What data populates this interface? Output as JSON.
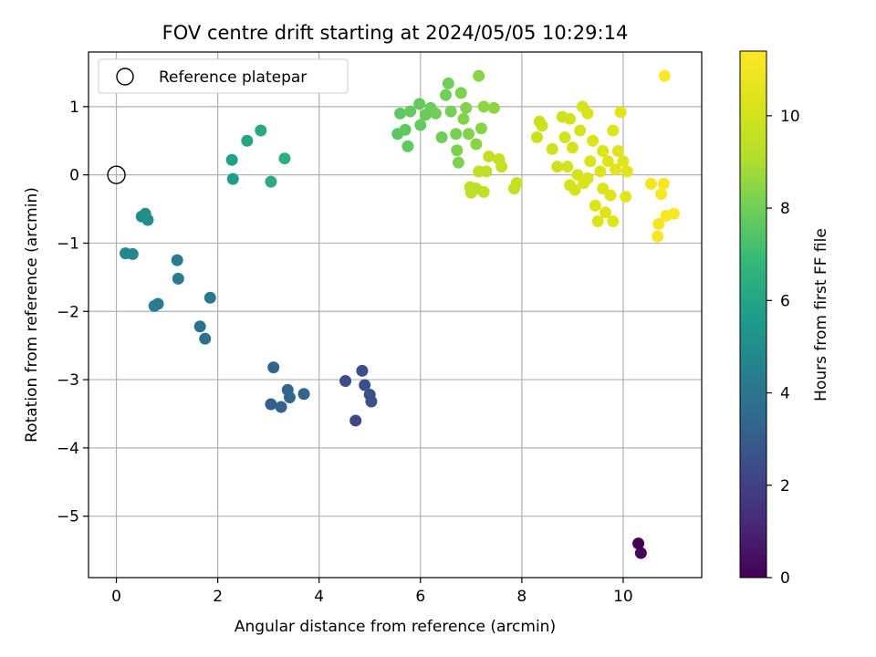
{
  "chart_data": {
    "type": "scatter",
    "title": "FOV centre drift starting at 2024/05/05 10:29:14",
    "xlabel": "Angular distance from reference (arcmin)",
    "ylabel": "Rotation from reference (arcmin)",
    "xlim": [
      -0.55,
      11.55
    ],
    "ylim": [
      -5.9,
      1.8
    ],
    "xticks": [
      0,
      2,
      4,
      6,
      8,
      10
    ],
    "xtick_labels": [
      "0",
      "2",
      "4",
      "6",
      "8",
      "10"
    ],
    "yticks": [
      -5,
      -4,
      -3,
      -2,
      -1,
      0,
      1
    ],
    "ytick_labels": [
      "−5",
      "−4",
      "−3",
      "−2",
      "−1",
      "0",
      "1"
    ],
    "grid": true,
    "legend": {
      "placement": "upper-left",
      "entries": [
        "Reference platepar"
      ]
    },
    "reference_point": {
      "label": "Reference platepar",
      "x": 0,
      "y": 0
    },
    "colorbar": {
      "label": "Hours from first FF file",
      "range": [
        0,
        11.4
      ],
      "ticks": [
        0,
        2,
        4,
        6,
        8,
        10
      ],
      "tick_labels": [
        "0",
        "2",
        "4",
        "6",
        "8",
        "10"
      ],
      "colormap": "viridis"
    },
    "points": [
      {
        "x": 10.3,
        "y": -5.4,
        "c": 0.0
      },
      {
        "x": 10.35,
        "y": -5.54,
        "c": 0.1
      },
      {
        "x": 4.72,
        "y": -3.6,
        "c": 2.2
      },
      {
        "x": 4.52,
        "y": -3.02,
        "c": 2.4
      },
      {
        "x": 4.85,
        "y": -2.87,
        "c": 2.5
      },
      {
        "x": 4.9,
        "y": -3.08,
        "c": 2.5
      },
      {
        "x": 5.0,
        "y": -3.22,
        "c": 2.6
      },
      {
        "x": 5.03,
        "y": -3.32,
        "c": 2.6
      },
      {
        "x": 3.05,
        "y": -3.36,
        "c": 3.1
      },
      {
        "x": 3.1,
        "y": -2.82,
        "c": 3.3
      },
      {
        "x": 3.25,
        "y": -3.4,
        "c": 3.2
      },
      {
        "x": 3.38,
        "y": -3.15,
        "c": 3.3
      },
      {
        "x": 3.42,
        "y": -3.26,
        "c": 3.4
      },
      {
        "x": 3.7,
        "y": -3.21,
        "c": 3.3
      },
      {
        "x": 1.65,
        "y": -2.22,
        "c": 3.8
      },
      {
        "x": 1.75,
        "y": -2.4,
        "c": 3.8
      },
      {
        "x": 1.85,
        "y": -1.8,
        "c": 4.1
      },
      {
        "x": 1.2,
        "y": -1.25,
        "c": 4.3
      },
      {
        "x": 1.22,
        "y": -1.52,
        "c": 4.2
      },
      {
        "x": 0.75,
        "y": -1.92,
        "c": 4.4
      },
      {
        "x": 0.82,
        "y": -1.89,
        "c": 4.4
      },
      {
        "x": 0.18,
        "y": -1.15,
        "c": 4.8
      },
      {
        "x": 0.32,
        "y": -1.16,
        "c": 4.8
      },
      {
        "x": 0.5,
        "y": -0.61,
        "c": 5.0
      },
      {
        "x": 0.57,
        "y": -0.57,
        "c": 5.0
      },
      {
        "x": 0.62,
        "y": -0.66,
        "c": 5.1
      },
      {
        "x": 2.28,
        "y": 0.22,
        "c": 5.8
      },
      {
        "x": 2.3,
        "y": -0.06,
        "c": 5.7
      },
      {
        "x": 2.58,
        "y": 0.5,
        "c": 6.0
      },
      {
        "x": 2.85,
        "y": 0.65,
        "c": 6.2
      },
      {
        "x": 3.05,
        "y": -0.1,
        "c": 6.3
      },
      {
        "x": 3.32,
        "y": 0.24,
        "c": 6.5
      },
      {
        "x": 5.55,
        "y": 0.6,
        "c": 7.6
      },
      {
        "x": 5.6,
        "y": 0.9,
        "c": 7.7
      },
      {
        "x": 5.7,
        "y": 0.66,
        "c": 7.7
      },
      {
        "x": 5.75,
        "y": 0.42,
        "c": 7.7
      },
      {
        "x": 5.8,
        "y": 0.93,
        "c": 7.8
      },
      {
        "x": 5.98,
        "y": 1.04,
        "c": 7.8
      },
      {
        "x": 6.0,
        "y": 0.73,
        "c": 7.8
      },
      {
        "x": 6.1,
        "y": 0.88,
        "c": 7.9
      },
      {
        "x": 6.2,
        "y": 0.98,
        "c": 7.9
      },
      {
        "x": 6.3,
        "y": 0.9,
        "c": 8.0
      },
      {
        "x": 6.42,
        "y": 0.55,
        "c": 8.0
      },
      {
        "x": 6.5,
        "y": 1.17,
        "c": 8.0
      },
      {
        "x": 6.55,
        "y": 1.34,
        "c": 8.0
      },
      {
        "x": 6.6,
        "y": 0.93,
        "c": 8.1
      },
      {
        "x": 6.7,
        "y": 0.6,
        "c": 8.1
      },
      {
        "x": 6.72,
        "y": 0.36,
        "c": 8.2
      },
      {
        "x": 6.75,
        "y": 0.18,
        "c": 8.2
      },
      {
        "x": 6.8,
        "y": 1.2,
        "c": 8.2
      },
      {
        "x": 6.85,
        "y": 0.82,
        "c": 8.3
      },
      {
        "x": 6.9,
        "y": 0.98,
        "c": 8.3
      },
      {
        "x": 6.95,
        "y": 0.6,
        "c": 8.3
      },
      {
        "x": 7.1,
        "y": 0.45,
        "c": 8.4
      },
      {
        "x": 7.15,
        "y": 1.45,
        "c": 8.4
      },
      {
        "x": 7.2,
        "y": 0.68,
        "c": 8.4
      },
      {
        "x": 7.25,
        "y": 1.0,
        "c": 8.5
      },
      {
        "x": 7.45,
        "y": 0.98,
        "c": 8.5
      },
      {
        "x": 6.98,
        "y": -0.18,
        "c": 9.4
      },
      {
        "x": 7.0,
        "y": -0.26,
        "c": 9.4
      },
      {
        "x": 7.1,
        "y": -0.2,
        "c": 9.4
      },
      {
        "x": 7.15,
        "y": 0.05,
        "c": 9.5
      },
      {
        "x": 7.25,
        "y": -0.25,
        "c": 9.5
      },
      {
        "x": 7.3,
        "y": 0.05,
        "c": 9.5
      },
      {
        "x": 7.35,
        "y": 0.27,
        "c": 9.5
      },
      {
        "x": 7.55,
        "y": 0.23,
        "c": 9.6
      },
      {
        "x": 7.6,
        "y": 0.12,
        "c": 9.6
      },
      {
        "x": 7.85,
        "y": -0.2,
        "c": 9.6
      },
      {
        "x": 7.9,
        "y": -0.12,
        "c": 9.6
      },
      {
        "x": 8.3,
        "y": 0.55,
        "c": 9.8
      },
      {
        "x": 8.35,
        "y": 0.78,
        "c": 9.8
      },
      {
        "x": 8.4,
        "y": 0.72,
        "c": 9.8
      },
      {
        "x": 8.6,
        "y": 0.38,
        "c": 9.9
      },
      {
        "x": 8.7,
        "y": 0.12,
        "c": 9.9
      },
      {
        "x": 8.8,
        "y": 0.85,
        "c": 9.9
      },
      {
        "x": 8.85,
        "y": 0.55,
        "c": 10.0
      },
      {
        "x": 8.9,
        "y": 0.12,
        "c": 10.0
      },
      {
        "x": 8.95,
        "y": 0.82,
        "c": 10.0
      },
      {
        "x": 9.0,
        "y": 0.4,
        "c": 10.0
      },
      {
        "x": 9.05,
        "y": -0.22,
        "c": 10.1
      },
      {
        "x": 9.1,
        "y": 0.0,
        "c": 10.1
      },
      {
        "x": 9.15,
        "y": 0.65,
        "c": 10.1
      },
      {
        "x": 9.2,
        "y": 1.0,
        "c": 10.1
      },
      {
        "x": 9.22,
        "y": -0.12,
        "c": 10.2
      },
      {
        "x": 9.3,
        "y": 0.9,
        "c": 10.2
      },
      {
        "x": 9.35,
        "y": 0.2,
        "c": 10.2
      },
      {
        "x": 9.4,
        "y": 0.5,
        "c": 10.2
      },
      {
        "x": 9.45,
        "y": -0.45,
        "c": 10.3
      },
      {
        "x": 9.5,
        "y": -0.68,
        "c": 10.3
      },
      {
        "x": 9.55,
        "y": 0.05,
        "c": 10.3
      },
      {
        "x": 9.6,
        "y": 0.35,
        "c": 10.3
      },
      {
        "x": 9.65,
        "y": -0.55,
        "c": 10.4
      },
      {
        "x": 9.7,
        "y": 0.2,
        "c": 10.4
      },
      {
        "x": 9.75,
        "y": -0.3,
        "c": 10.4
      },
      {
        "x": 9.8,
        "y": -0.68,
        "c": 10.4
      },
      {
        "x": 9.85,
        "y": 0.08,
        "c": 10.5
      },
      {
        "x": 9.9,
        "y": 0.35,
        "c": 10.5
      },
      {
        "x": 9.95,
        "y": 0.92,
        "c": 10.5
      },
      {
        "x": 10.0,
        "y": 0.2,
        "c": 10.5
      },
      {
        "x": 10.05,
        "y": -0.32,
        "c": 10.6
      },
      {
        "x": 10.08,
        "y": 0.05,
        "c": 10.6
      },
      {
        "x": 9.8,
        "y": 0.65,
        "c": 10.4
      },
      {
        "x": 9.6,
        "y": -0.2,
        "c": 10.3
      },
      {
        "x": 9.3,
        "y": -0.05,
        "c": 10.2
      },
      {
        "x": 8.95,
        "y": -0.15,
        "c": 10.0
      },
      {
        "x": 10.55,
        "y": -0.13,
        "c": 11.0
      },
      {
        "x": 10.7,
        "y": -0.72,
        "c": 11.1
      },
      {
        "x": 10.68,
        "y": -0.9,
        "c": 11.1
      },
      {
        "x": 10.75,
        "y": -0.28,
        "c": 11.2
      },
      {
        "x": 10.8,
        "y": -0.13,
        "c": 11.2
      },
      {
        "x": 10.82,
        "y": 1.45,
        "c": 11.4
      },
      {
        "x": 10.85,
        "y": -0.6,
        "c": 11.3
      },
      {
        "x": 11.0,
        "y": -0.57,
        "c": 11.3
      }
    ]
  }
}
